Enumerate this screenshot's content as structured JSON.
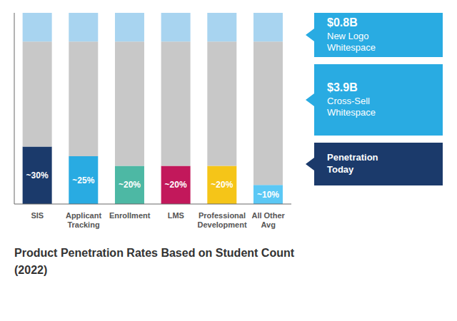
{
  "chart_data": {
    "type": "bar",
    "title": "Product Penetration Rates Based on Student Count",
    "subtitle": "(2022)",
    "categories": [
      "SIS",
      "Applicant\nTracking",
      "Enrollment",
      "LMS",
      "Professional\nDevelopment",
      "All Other\nAvg"
    ],
    "series": [
      {
        "values": [
          0.3,
          0.25,
          0.2,
          0.2,
          0.2,
          0.1
        ],
        "value_labels": [
          "~30%",
          "~25%",
          "~20%",
          "~20%",
          "~20%",
          "~10%"
        ],
        "colors": [
          "#1b3a6b",
          "#29abe2",
          "#4db8a4",
          "#c2185b",
          "#f5c518",
          "#5bc8f5"
        ]
      },
      {
        "values": [
          0.55,
          0.6,
          0.65,
          0.65,
          0.65,
          0.75
        ],
        "color": "#c8c8c8"
      },
      {
        "values": [
          0.15,
          0.15,
          0.15,
          0.15,
          0.15,
          0.15
        ],
        "color": "#a8d4f0"
      }
    ],
    "stacked": true,
    "ylim": [
      0,
      1.0
    ],
    "yticks": [],
    "grid": false,
    "tick_labels": "x",
    "annotations": [
      {
        "text": "$0.8B\nNew Logo\nWhitespace",
        "color": "#29abe2"
      },
      {
        "text": "$3.9B\nCross-Sell\nWhitespace",
        "color": "#29abe2"
      },
      {
        "text": "Penetration\nToday",
        "color": "#1b3a6b"
      }
    ]
  }
}
